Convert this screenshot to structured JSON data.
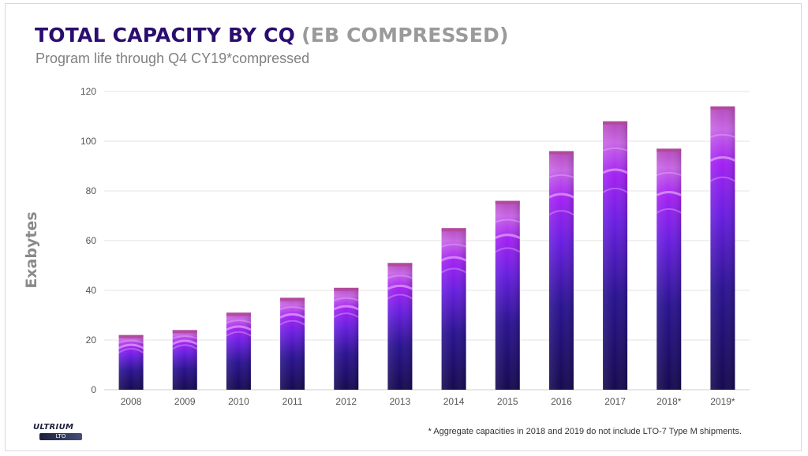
{
  "header": {
    "title_main": "TOTAL CAPACITY BY CQ",
    "title_suffix": "(EB COMPRESSED)",
    "subtitle": "Program life through Q4 CY19*compressed"
  },
  "footnote": "* Aggregate capacities in 2018 and 2019 do not include LTO-7 Type M shipments.",
  "logo": {
    "word": "ULTRIUM",
    "mark": "LTO"
  },
  "colors": {
    "bar_dark": "#1a0c5c",
    "bar_mid": "#4a1fb8",
    "bar_bright": "#a020f0",
    "bar_top": "#d07ae8",
    "grid": "#e3e3e3",
    "title": "#2a0d6e"
  },
  "chart_data": {
    "type": "bar",
    "title": "TOTAL CAPACITY BY CQ (EB COMPRESSED)",
    "subtitle": "Program life through Q4 CY19*compressed",
    "xlabel": "",
    "ylabel": "Exabytes",
    "categories": [
      "2008",
      "2009",
      "2010",
      "2011",
      "2012",
      "2013",
      "2014",
      "2015",
      "2016",
      "2017",
      "2018*",
      "2019*"
    ],
    "values": [
      22,
      24,
      31,
      37,
      41,
      51,
      65,
      76,
      96,
      108,
      97,
      114
    ],
    "ylim": [
      0,
      120
    ],
    "yticks": [
      0,
      20,
      40,
      60,
      80,
      100,
      120
    ],
    "grid": true,
    "legend": "none"
  }
}
